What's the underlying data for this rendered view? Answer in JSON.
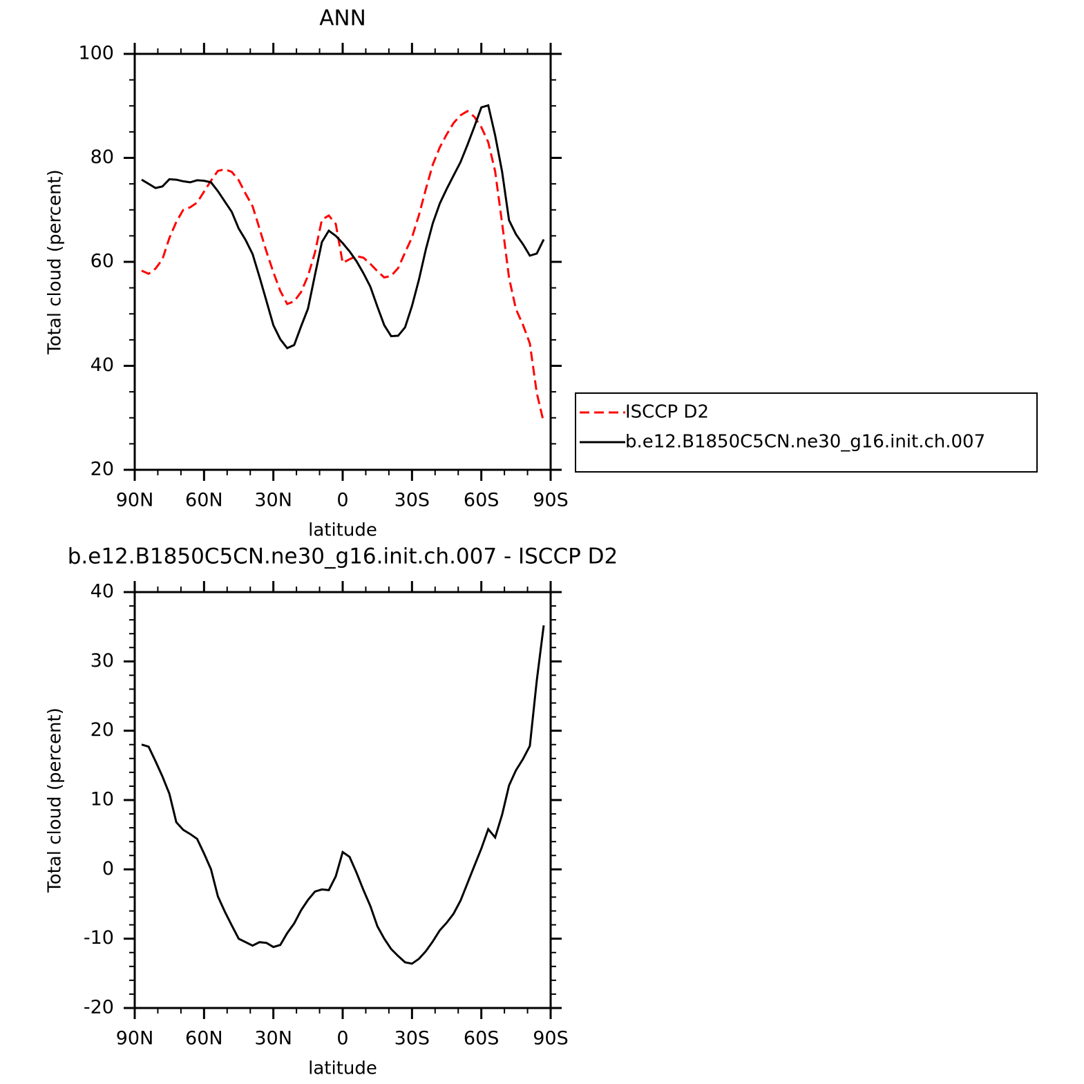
{
  "chart_data": [
    {
      "type": "line",
      "title": "ANN",
      "xlabel": "latitude",
      "ylabel": "Total cloud (percent)",
      "x": [
        87,
        84,
        81,
        78,
        75,
        72,
        69,
        66,
        63,
        60,
        57,
        54,
        51,
        48,
        45,
        42,
        39,
        36,
        33,
        30,
        27,
        24,
        21,
        18,
        15,
        12,
        9,
        6,
        3,
        0,
        -3,
        -6,
        -9,
        -12,
        -15,
        -18,
        -21,
        -24,
        -27,
        -30,
        -33,
        -36,
        -39,
        -42,
        -45,
        -48,
        -51,
        -54,
        -57,
        -60,
        -63,
        -66,
        -69,
        -72,
        -75,
        -78,
        -81,
        -84,
        -87
      ],
      "series": [
        {
          "name": "ISCCP D2",
          "color": "#ff0000",
          "dash": true,
          "values": [
            58.3,
            57.7,
            58.7,
            60.5,
            64.6,
            67.7,
            70.0,
            70.5,
            71.4,
            73.5,
            75.6,
            77.5,
            77.8,
            77.3,
            75.7,
            73.1,
            70.7,
            66.4,
            62.0,
            58.0,
            54.4,
            51.9,
            52.4,
            54.2,
            57.3,
            61.8,
            68.1,
            68.9,
            67.3,
            59.8,
            60.5,
            61.1,
            60.8,
            59.6,
            58.2,
            57.0,
            57.3,
            58.8,
            61.8,
            64.7,
            69.0,
            74.0,
            78.7,
            82.0,
            84.5,
            86.7,
            88.2,
            89.0,
            87.9,
            85.9,
            83.0,
            77.4,
            67.4,
            56.9,
            50.9,
            47.9,
            44.3,
            34.8,
            29.1
          ]
        },
        {
          "name": "b.e12.B1850C5CN.ne30_g16.init.ch.007",
          "color": "#000000",
          "dash": false,
          "values": [
            75.8,
            75.0,
            74.2,
            74.5,
            75.9,
            75.8,
            75.5,
            75.3,
            75.7,
            75.6,
            75.3,
            73.6,
            71.6,
            69.6,
            66.4,
            64.2,
            61.5,
            57.1,
            52.5,
            47.8,
            45.1,
            43.4,
            44.0,
            47.6,
            51.0,
            57.5,
            63.8,
            66.0,
            65.0,
            63.6,
            62.0,
            60.1,
            57.8,
            55.2,
            51.4,
            47.8,
            45.7,
            45.8,
            47.4,
            51.5,
            56.6,
            62.4,
            67.4,
            71.2,
            74.0,
            76.6,
            79.2,
            82.5,
            86.0,
            89.7,
            90.1,
            84.3,
            77.3,
            68.0,
            65.3,
            63.4,
            61.2,
            61.6,
            64.3
          ]
        }
      ],
      "xlim": [
        90,
        -90
      ],
      "ylim": [
        20,
        100
      ],
      "xticks": [
        {
          "value": 90,
          "label": "90N"
        },
        {
          "value": 60,
          "label": "60N"
        },
        {
          "value": 30,
          "label": "30N"
        },
        0,
        {
          "value": -30,
          "label": "30S"
        },
        {
          "value": -60,
          "label": "60S"
        },
        {
          "value": -90,
          "label": "90S"
        }
      ],
      "yticks": [
        20,
        40,
        60,
        80,
        100
      ],
      "xminorticks": [
        80,
        70,
        50,
        40,
        20,
        10,
        -10,
        -20,
        -40,
        -50,
        -70,
        -80
      ],
      "yminorticks": [
        25,
        30,
        35,
        45,
        50,
        55,
        65,
        70,
        75,
        85,
        90,
        95
      ],
      "legend": "right"
    },
    {
      "type": "line",
      "title": "b.e12.B1850C5CN.ne30_g16.init.ch.007 - ISCCP D2",
      "xlabel": "latitude",
      "ylabel": "Total cloud (percent)",
      "x": [
        87,
        84,
        81,
        78,
        75,
        72,
        69,
        66,
        63,
        60,
        57,
        54,
        51,
        48,
        45,
        42,
        39,
        36,
        33,
        30,
        27,
        24,
        21,
        18,
        15,
        12,
        9,
        6,
        3,
        0,
        -3,
        -6,
        -9,
        -12,
        -15,
        -18,
        -21,
        -24,
        -27,
        -30,
        -33,
        -36,
        -39,
        -42,
        -45,
        -48,
        -51,
        -54,
        -57,
        -60,
        -63,
        -66,
        -69,
        -72,
        -75,
        -78,
        -81,
        -84,
        -87
      ],
      "series": [
        {
          "color": "#000000",
          "dash": false,
          "values": [
            18.0,
            17.7,
            15.6,
            13.4,
            10.9,
            6.8,
            5.7,
            5.1,
            4.4,
            2.3,
            0.0,
            -3.9,
            -6.1,
            -8.1,
            -10.0,
            -10.5,
            -11.0,
            -10.5,
            -10.6,
            -11.2,
            -10.9,
            -9.2,
            -7.8,
            -5.9,
            -4.4,
            -3.2,
            -2.9,
            -3.0,
            -1.0,
            2.5,
            1.8,
            -0.5,
            -3.0,
            -5.3,
            -8.2,
            -10.0,
            -11.5,
            -12.5,
            -13.4,
            -13.6,
            -12.9,
            -11.8,
            -10.4,
            -8.8,
            -7.7,
            -6.4,
            -4.5,
            -2.0,
            0.5,
            3.0,
            5.8,
            4.6,
            7.9,
            12.1,
            14.3,
            15.9,
            17.8,
            27.2,
            35.2
          ]
        }
      ],
      "xlim": [
        90,
        -90
      ],
      "ylim": [
        -20,
        40
      ],
      "xticks": [
        {
          "value": 90,
          "label": "90N"
        },
        {
          "value": 60,
          "label": "60N"
        },
        {
          "value": 30,
          "label": "30N"
        },
        0,
        {
          "value": -30,
          "label": "30S"
        },
        {
          "value": -60,
          "label": "60S"
        },
        {
          "value": -90,
          "label": "90S"
        }
      ],
      "yticks": [
        -20,
        -10,
        0,
        10,
        20,
        30,
        40
      ],
      "xminorticks": [
        80,
        70,
        50,
        40,
        20,
        10,
        -10,
        -20,
        -40,
        -50,
        -70,
        -80
      ],
      "yminorticks": [
        -18,
        -16,
        -14,
        -12,
        -8,
        -6,
        -4,
        -2,
        2,
        4,
        6,
        8,
        12,
        14,
        16,
        18,
        22,
        24,
        26,
        28,
        32,
        34,
        36,
        38
      ]
    }
  ]
}
